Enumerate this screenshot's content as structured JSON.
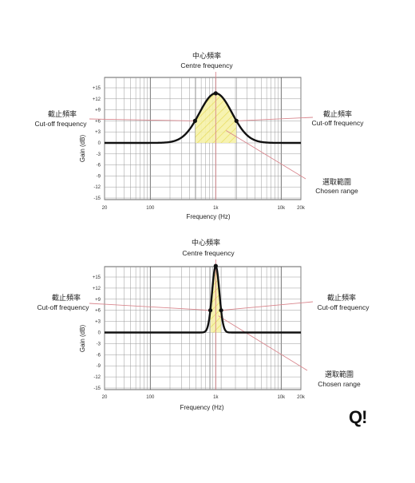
{
  "brand": "Q!",
  "panels": [
    {
      "id": "wide",
      "annotations": {
        "centre_zh": "中心頻率",
        "centre_en": "Centre frequency",
        "cutoff_zh": "截止頻率",
        "cutoff_en": "Cut-off frequency",
        "range_zh": "選取範圍",
        "range_en": "Chosen range"
      },
      "xlabel": "Frequency (Hz)",
      "ylabel": "Gain (dB)",
      "x_ticks": [
        "20",
        "100",
        "1k",
        "10k",
        "20k"
      ],
      "y_ticks": [
        "+15",
        "+12",
        "+9",
        "+6",
        "+3",
        "0",
        "-3",
        "-6",
        "-9",
        "-12",
        "-15"
      ],
      "centre_hz": 1000,
      "peak_db": 13.5,
      "bandwidth_octaves": 2.1,
      "cutoff_db": 6
    },
    {
      "id": "narrow",
      "annotations": {
        "centre_zh": "中心頻率",
        "centre_en": "Centre frequency",
        "cutoff_zh": "截止頻率",
        "cutoff_en": "Cut-off frequency",
        "range_zh": "選取範圍",
        "range_en": "Chosen range"
      },
      "xlabel": "Frequency (Hz)",
      "ylabel": "Gain (dB)",
      "x_ticks": [
        "20",
        "100",
        "1k",
        "10k",
        "20k"
      ],
      "y_ticks": [
        "+15",
        "+12",
        "+9",
        "+6",
        "+3",
        "0",
        "-3",
        "-6",
        "-9",
        "-12",
        "-15"
      ],
      "centre_hz": 1000,
      "peak_db": 18,
      "bandwidth_octaves": 0.55,
      "cutoff_db": 6
    }
  ],
  "colors": {
    "curve": "#111111",
    "grid_major": "#555555",
    "grid_minor": "#9a9a9a",
    "annotation_line": "#d9868d",
    "range_fill": "#f6f2a8",
    "range_hatch": "#e7dc55"
  }
}
